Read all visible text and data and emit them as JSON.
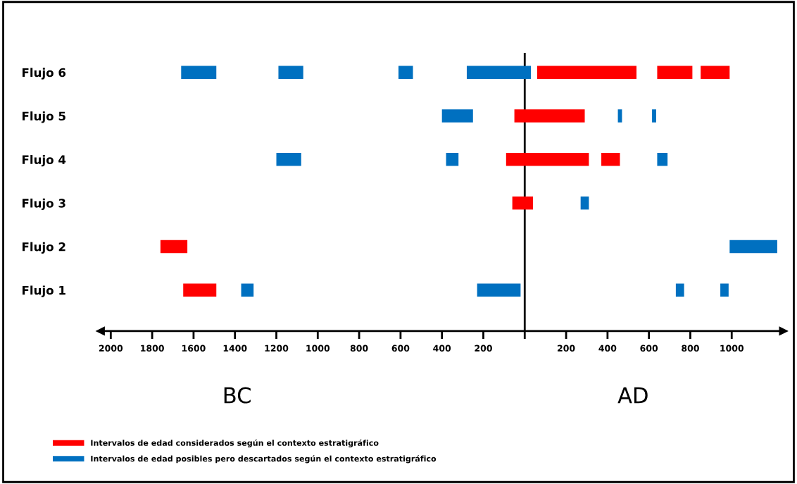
{
  "chart_data": {
    "type": "bar",
    "orientation": "horizontal",
    "categories": [
      "Flujo 6",
      "Flujo 5",
      "Flujo 4",
      "Flujo 3",
      "Flujo 2",
      "Flujo 1"
    ],
    "series": [
      {
        "name": "Intervalos de edad considerados según el contexto estratigráfico",
        "color": "#ff0000",
        "base": [
          60,
          -50,
          -90,
          -60,
          -1760,
          -1650
        ],
        "values": [
          480,
          340,
          400,
          100,
          130,
          160
        ]
      },
      {
        "color": "#ff0000",
        "base": [
          640,
          null,
          370,
          null,
          null,
          null
        ],
        "values": [
          170,
          null,
          90,
          null,
          null,
          null
        ]
      },
      {
        "color": "#ff0000",
        "base": [
          850,
          null,
          null,
          null,
          null,
          null
        ],
        "values": [
          140,
          null,
          null,
          null,
          null,
          null
        ]
      },
      {
        "name": "Intervalos de edad posibles pero descartados según el contexto estratigráfico",
        "color": "#0070c0",
        "base": [
          -1660,
          -400,
          -1200,
          270,
          990,
          -1370
        ],
        "values": [
          170,
          150,
          120,
          40,
          230,
          60
        ]
      },
      {
        "color": "#0070c0",
        "base": [
          -1190,
          450,
          -380,
          null,
          null,
          -230
        ],
        "values": [
          120,
          20,
          60,
          null,
          null,
          210
        ]
      },
      {
        "color": "#0070c0",
        "base": [
          -610,
          615,
          640,
          null,
          null,
          730
        ],
        "values": [
          70,
          20,
          50,
          null,
          null,
          40
        ]
      },
      {
        "color": "#0070c0",
        "base": [
          -280,
          null,
          null,
          null,
          null,
          945
        ],
        "values": [
          310,
          null,
          null,
          null,
          null,
          40
        ]
      }
    ],
    "xlim": [
      -2050,
      1250
    ],
    "xticks": [
      {
        "value": -2000,
        "label": "2000"
      },
      {
        "value": -1800,
        "label": "1800"
      },
      {
        "value": -1600,
        "label": "1600"
      },
      {
        "value": -1400,
        "label": "1400"
      },
      {
        "value": -1200,
        "label": "1200"
      },
      {
        "value": -1000,
        "label": "1000"
      },
      {
        "value": -800,
        "label": "800"
      },
      {
        "value": -600,
        "label": "600"
      },
      {
        "value": -400,
        "label": "400"
      },
      {
        "value": -200,
        "label": "200"
      },
      {
        "value": 0,
        "label": null
      },
      200,
      400,
      600,
      800,
      1000
    ],
    "ref_lines": [
      {
        "axis": "x",
        "value": 0,
        "color": "#000000"
      }
    ],
    "annotations": [
      "BC",
      "AD"
    ],
    "legend": "bottom left",
    "grid": false
  }
}
